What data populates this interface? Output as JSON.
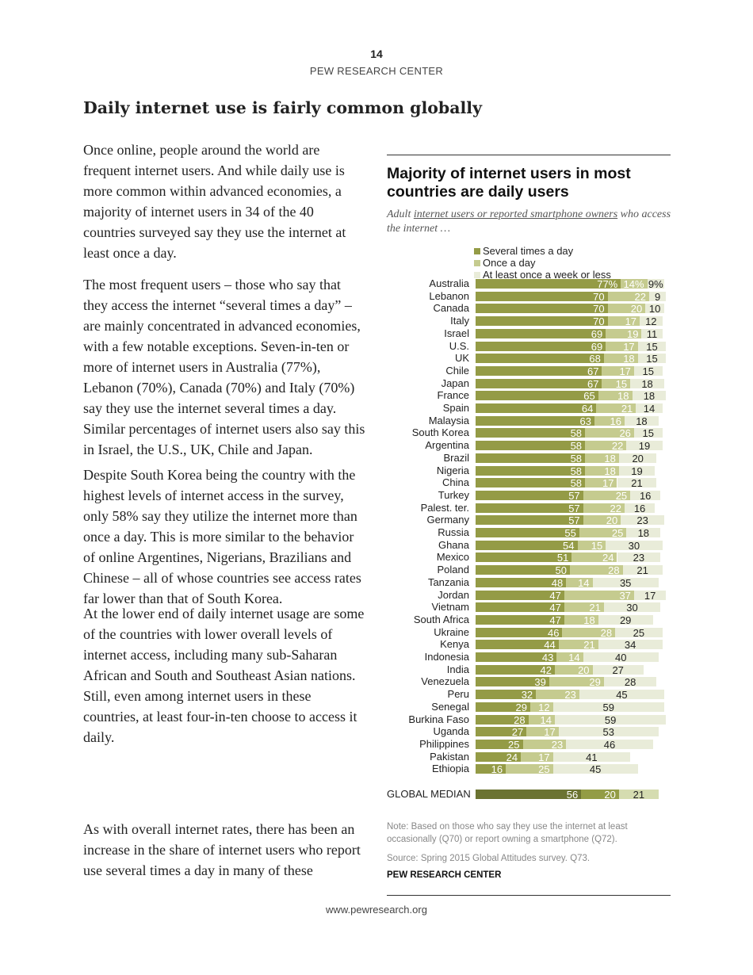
{
  "header": {
    "page_number": "14",
    "org": "PEW RESEARCH CENTER"
  },
  "heading": "Daily internet use is fairly common globally",
  "paragraphs": [
    "Once online, people around the world are frequent internet users. And while daily use is more common within advanced economies, a majority of internet users in 34 of the 40 countries surveyed say they use the internet at least once a day.",
    "The most frequent users – those who say that they access the internet “several times a day” – are mainly concentrated in advanced economies, with a few notable exceptions. Seven-in-ten or more of internet users in Australia (77%), Lebanon (70%), Canada (70%) and Italy (70%) say they use the internet several times a day. Similar percentages of internet users also say this in Israel, the U.S., UK, Chile and Japan.",
    "Despite South Korea being the country with the highest levels of internet access in the survey, only 58% say they utilize the internet more than once a day. This is more similar to the behavior of online Argentines, Nigerians, Brazilians and Chinese – all of whose countries see access rates far lower than that of South Korea.",
    "At the lower end of daily internet usage are some of the countries with lower overall levels of internet access, including many sub-Saharan African and South and Southeast Asian nations. Still, even among internet users in these countries, at least four-in-ten choose to access it daily.",
    "As with overall internet rates, there has been an increase in the share of internet users who report use several times a day in many of these"
  ],
  "chart_data": {
    "type": "bar",
    "orientation": "horizontal-stacked",
    "title": "Majority of internet users in most countries are daily users",
    "subtitle_link": "internet users or reported smartphone owners",
    "subtitle_pre": "Adult ",
    "subtitle_post": " who access the internet …",
    "series": [
      {
        "name": "Several times a day",
        "color": "#949b46",
        "median_color": "#6b7331"
      },
      {
        "name": "Once a day",
        "color": "#c5cb8f",
        "median_color": "#939c45"
      },
      {
        "name": "At least once a week or less",
        "color": "#e9ecd9",
        "median_color": "#d5dcb0"
      }
    ],
    "rows": [
      {
        "label": "Australia",
        "values": [
          77,
          14,
          9
        ]
      },
      {
        "label": "Lebanon",
        "values": [
          70,
          22,
          9
        ]
      },
      {
        "label": "Canada",
        "values": [
          70,
          20,
          10
        ]
      },
      {
        "label": "Italy",
        "values": [
          70,
          17,
          12
        ]
      },
      {
        "label": "Israel",
        "values": [
          69,
          19,
          11
        ]
      },
      {
        "label": "U.S.",
        "values": [
          69,
          17,
          15
        ]
      },
      {
        "label": "UK",
        "values": [
          68,
          18,
          15
        ]
      },
      {
        "label": "Chile",
        "values": [
          67,
          17,
          15
        ]
      },
      {
        "label": "Japan",
        "values": [
          67,
          15,
          18
        ]
      },
      {
        "label": "France",
        "values": [
          65,
          18,
          18
        ]
      },
      {
        "label": "Spain",
        "values": [
          64,
          21,
          14
        ]
      },
      {
        "label": "Malaysia",
        "values": [
          63,
          16,
          18
        ]
      },
      {
        "label": "South Korea",
        "values": [
          58,
          26,
          15
        ]
      },
      {
        "label": "Argentina",
        "values": [
          58,
          22,
          19
        ]
      },
      {
        "label": "Brazil",
        "values": [
          58,
          18,
          20
        ]
      },
      {
        "label": "Nigeria",
        "values": [
          58,
          18,
          19
        ]
      },
      {
        "label": "China",
        "values": [
          58,
          17,
          21
        ]
      },
      {
        "label": "Turkey",
        "values": [
          57,
          25,
          16
        ]
      },
      {
        "label": "Palest. ter.",
        "values": [
          57,
          22,
          16
        ]
      },
      {
        "label": "Germany",
        "values": [
          57,
          20,
          23
        ]
      },
      {
        "label": "Russia",
        "values": [
          55,
          25,
          18
        ]
      },
      {
        "label": "Ghana",
        "values": [
          54,
          15,
          30
        ]
      },
      {
        "label": "Mexico",
        "values": [
          51,
          24,
          23
        ]
      },
      {
        "label": "Poland",
        "values": [
          50,
          28,
          21
        ]
      },
      {
        "label": "Tanzania",
        "values": [
          48,
          14,
          35
        ]
      },
      {
        "label": "Jordan",
        "values": [
          47,
          37,
          17
        ]
      },
      {
        "label": "Vietnam",
        "values": [
          47,
          21,
          30
        ]
      },
      {
        "label": "South Africa",
        "values": [
          47,
          18,
          29
        ]
      },
      {
        "label": "Ukraine",
        "values": [
          46,
          28,
          25
        ]
      },
      {
        "label": "Kenya",
        "values": [
          44,
          21,
          34
        ]
      },
      {
        "label": "Indonesia",
        "values": [
          43,
          14,
          40
        ]
      },
      {
        "label": "India",
        "values": [
          42,
          20,
          27
        ]
      },
      {
        "label": "Venezuela",
        "values": [
          39,
          29,
          28
        ]
      },
      {
        "label": "Peru",
        "values": [
          32,
          23,
          45
        ]
      },
      {
        "label": "Senegal",
        "values": [
          29,
          12,
          59
        ]
      },
      {
        "label": "Burkina Faso",
        "values": [
          28,
          14,
          59
        ]
      },
      {
        "label": "Uganda",
        "values": [
          27,
          17,
          53
        ]
      },
      {
        "label": "Philippines",
        "values": [
          25,
          23,
          46
        ]
      },
      {
        "label": "Pakistan",
        "values": [
          24,
          17,
          41
        ]
      },
      {
        "label": "Ethiopia",
        "values": [
          16,
          25,
          45
        ]
      }
    ],
    "median": {
      "label": "GLOBAL MEDIAN",
      "values": [
        56,
        20,
        21
      ]
    },
    "first_row_suffix": "%",
    "xlim": [
      0,
      100
    ]
  },
  "note": "Note: Based on those who say they use the internet at least occasionally (Q70) or report owning a smartphone (Q72).",
  "source": "Source: Spring 2015 Global Attitudes survey. Q73.",
  "brand": "PEW RESEARCH CENTER",
  "footer": "www.pewresearch.org"
}
